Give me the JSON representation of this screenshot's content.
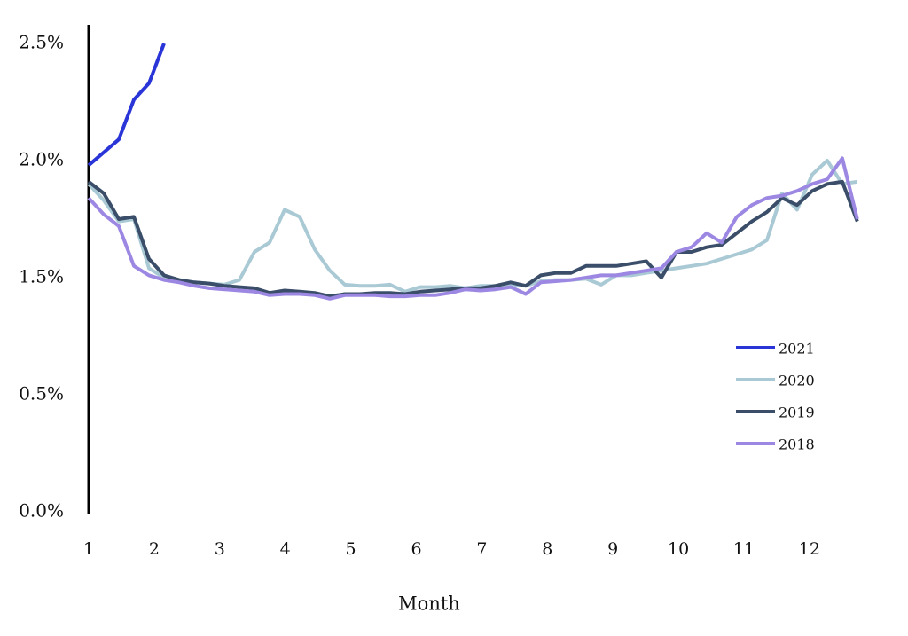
{
  "chart_data": {
    "type": "line",
    "x_label": "Month",
    "xticks": [
      1,
      2,
      3,
      4,
      5,
      6,
      7,
      8,
      9,
      10,
      11,
      12
    ],
    "xlim": [
      1,
      12.73
    ],
    "ylim": [
      0,
      2.5
    ],
    "yticks": [
      {
        "value": 0,
        "label": "0.0%"
      },
      {
        "value": 0.5,
        "label": "0.5%"
      },
      {
        "value": 1.5,
        "label": "1.5%"
      },
      {
        "value": 2.0,
        "label": "2.0%"
      },
      {
        "value": 2.5,
        "label": "2.5%"
      }
    ],
    "grid": false,
    "legend": "lower right",
    "series": [
      {
        "name": "2021",
        "color": "#2a35d8",
        "x": [
          1,
          1.46,
          1.69,
          1.92,
          2.15
        ],
        "values": [
          1.98,
          2.09,
          2.26,
          2.33,
          2.5
        ]
      },
      {
        "name": "2020",
        "color": "#a9c9d5",
        "x": [
          1,
          1.23,
          1.46,
          1.69,
          1.92,
          2.15,
          2.38,
          2.61,
          2.84,
          3.07,
          3.3,
          3.53,
          3.76,
          3.99,
          4.22,
          4.45,
          4.68,
          4.91,
          5.14,
          5.37,
          5.6,
          5.83,
          6.06,
          6.29,
          6.52,
          6.75,
          6.98,
          7.21,
          7.44,
          7.67,
          7.9,
          8.13,
          8.36,
          8.59,
          8.82,
          9.05,
          9.28,
          9.51,
          9.74,
          9.97,
          10.2,
          10.43,
          10.66,
          10.89,
          11.12,
          11.35,
          11.58,
          11.81,
          12.04,
          12.27,
          12.5,
          12.73
        ],
        "values": [
          1.9,
          1.83,
          1.74,
          1.75,
          1.54,
          1.5,
          1.48,
          1.46,
          1.45,
          1.44,
          1.48,
          1.61,
          1.65,
          1.79,
          1.76,
          1.62,
          1.53,
          1.44,
          1.43,
          1.43,
          1.44,
          1.38,
          1.42,
          1.42,
          1.43,
          1.41,
          1.43,
          1.43,
          1.44,
          1.43,
          1.47,
          1.48,
          1.48,
          1.49,
          1.44,
          1.51,
          1.51,
          1.52,
          1.53,
          1.54,
          1.55,
          1.56,
          1.58,
          1.6,
          1.62,
          1.66,
          1.86,
          1.79,
          1.94,
          2.0,
          1.9,
          1.91
        ]
      },
      {
        "name": "2019",
        "color": "#3b4e69",
        "x": [
          1,
          1.23,
          1.46,
          1.69,
          1.92,
          2.15,
          2.38,
          2.61,
          2.84,
          3.07,
          3.3,
          3.53,
          3.76,
          3.99,
          4.22,
          4.45,
          4.68,
          4.91,
          5.14,
          5.37,
          5.6,
          5.83,
          6.06,
          6.29,
          6.52,
          6.75,
          6.98,
          7.21,
          7.44,
          7.67,
          7.9,
          8.13,
          8.36,
          8.59,
          8.82,
          9.05,
          9.28,
          9.51,
          9.74,
          9.97,
          10.2,
          10.43,
          10.66,
          10.89,
          11.12,
          11.35,
          11.58,
          11.81,
          12.04,
          12.27,
          12.5,
          12.73
        ],
        "values": [
          1.91,
          1.86,
          1.75,
          1.76,
          1.58,
          1.51,
          1.48,
          1.46,
          1.45,
          1.43,
          1.42,
          1.41,
          1.37,
          1.39,
          1.38,
          1.37,
          1.34,
          1.36,
          1.36,
          1.37,
          1.37,
          1.36,
          1.38,
          1.39,
          1.4,
          1.41,
          1.41,
          1.43,
          1.46,
          1.43,
          1.51,
          1.52,
          1.52,
          1.55,
          1.55,
          1.55,
          1.56,
          1.57,
          1.5,
          1.61,
          1.61,
          1.63,
          1.64,
          1.69,
          1.74,
          1.78,
          1.84,
          1.81,
          1.87,
          1.9,
          1.91,
          1.74
        ]
      },
      {
        "name": "2018",
        "color": "#9c88e2",
        "x": [
          1,
          1.23,
          1.46,
          1.69,
          1.92,
          2.15,
          2.38,
          2.61,
          2.84,
          3.07,
          3.3,
          3.53,
          3.76,
          3.99,
          4.22,
          4.45,
          4.68,
          4.91,
          5.14,
          5.37,
          5.6,
          5.83,
          6.06,
          6.29,
          6.52,
          6.75,
          6.98,
          7.21,
          7.44,
          7.67,
          7.9,
          8.13,
          8.36,
          8.59,
          8.82,
          9.05,
          9.28,
          9.51,
          9.74,
          9.97,
          10.2,
          10.43,
          10.66,
          10.89,
          11.12,
          11.35,
          11.58,
          11.81,
          12.04,
          12.27,
          12.5,
          12.73
        ],
        "values": [
          1.84,
          1.77,
          1.72,
          1.55,
          1.51,
          1.48,
          1.46,
          1.43,
          1.41,
          1.4,
          1.39,
          1.38,
          1.35,
          1.36,
          1.36,
          1.35,
          1.32,
          1.35,
          1.35,
          1.35,
          1.34,
          1.34,
          1.35,
          1.35,
          1.37,
          1.4,
          1.39,
          1.4,
          1.42,
          1.36,
          1.46,
          1.47,
          1.48,
          1.5,
          1.51,
          1.51,
          1.52,
          1.53,
          1.54,
          1.61,
          1.63,
          1.69,
          1.65,
          1.76,
          1.81,
          1.84,
          1.85,
          1.87,
          1.9,
          1.92,
          2.01,
          1.75
        ]
      }
    ]
  }
}
